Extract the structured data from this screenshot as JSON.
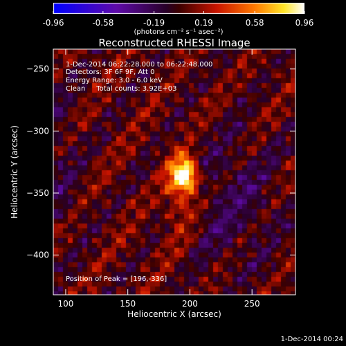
{
  "chart_data": {
    "type": "heatmap",
    "title": "Reconstructed RHESSI Image",
    "xlabel": "Heliocentric X (arcsec)",
    "ylabel": "Heliocentric Y (arcsec)",
    "xlim": [
      90,
      285
    ],
    "ylim": [
      -432,
      -234
    ],
    "xticks": [
      100,
      150,
      200,
      250
    ],
    "yticks": [
      -250,
      -300,
      -350,
      -400
    ],
    "colorbar": {
      "ticks": [
        "-0.96",
        "-0.58",
        "-0.19",
        "0.19",
        "0.58",
        "0.96"
      ],
      "unit_label": "(photons cm⁻² s⁻¹ asec⁻²)",
      "range": [
        -0.96,
        0.96
      ]
    },
    "annotations": [
      "1-Dec-2014 06:22:28.000 to 06:22:48.000",
      "Detectors: 3F 6F 9F, Att 0",
      "Energy Range: 3.0 - 6.0 keV",
      "Clean     Total counts: 3.92E+03"
    ],
    "peak_label": "Position of Peak = [196,-336]",
    "peak": {
      "x": 196,
      "y": -336
    },
    "colors": {
      "background": "#000000",
      "text": "#ffffff"
    }
  },
  "footer_timestamp": "1-Dec-2014 00:24"
}
